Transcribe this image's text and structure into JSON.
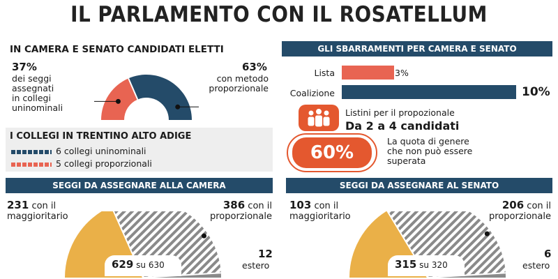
{
  "title": "IL PARLAMENTO CON IL ROSATELLUM",
  "colors": {
    "navy": "#244b69",
    "coral": "#e86452",
    "orange": "#e4582f",
    "gold": "#eab048",
    "hatch": "#8a8a8a"
  },
  "elected_section": {
    "heading": "IN CAMERA E SENATO CANDIDATI ELETTI",
    "left_pct": "37%",
    "left_desc": [
      "dei seggi",
      "assegnati",
      "in collegi",
      "uninominali"
    ],
    "right_pct": "63%",
    "right_desc": [
      "con metodo",
      "proporzionale"
    ]
  },
  "trentino": {
    "heading": "I COLLEGI IN TRENTINO ALTO ADIGE",
    "items": [
      {
        "label": "6 collegi uninominali"
      },
      {
        "label": "5 collegi proporzionali"
      }
    ]
  },
  "thresholds": {
    "heading": "GLI SBARRAMENTI PER CAMERA E SENATO",
    "lista_label": "Lista",
    "lista_value": "3%",
    "coalizione_label": "Coalizione",
    "coalizione_value": "10%"
  },
  "listini": {
    "line1": "Listini per il propozionale",
    "line2": "Da 2 a 4 candidati"
  },
  "quota": {
    "pct": "60%",
    "desc": [
      "La quota di genere",
      "che non può essere",
      "superata"
    ]
  },
  "camera": {
    "heading": "SEGGI DA ASSEGNARE ALLA CAMERA",
    "left_num": "231",
    "left_desc": [
      "con il",
      "maggioritario"
    ],
    "right_num": "386",
    "right_desc": [
      "con il",
      "proporzionale"
    ],
    "estero_num": "12",
    "estero_label": "estero",
    "total_num": "629",
    "total_suffix": "su 630"
  },
  "senato": {
    "heading": "SEGGI DA ASSEGNARE AL SENATO",
    "left_num": "103",
    "left_desc": [
      "con il",
      "maggioritario"
    ],
    "right_num": "206",
    "right_desc": [
      "con il",
      "proporzionale"
    ],
    "estero_num": "6",
    "estero_label": "estero",
    "total_num": "315",
    "total_suffix": "su 320"
  },
  "chart_data": [
    {
      "type": "pie",
      "name_ref": "elected_section",
      "shape": "semi-donut",
      "slices": [
        {
          "label": "collegi uninominali",
          "value": 37,
          "color": "#e86452"
        },
        {
          "label": "metodo proporzionale",
          "value": 63,
          "color": "#244b69"
        }
      ]
    },
    {
      "type": "bar",
      "name_ref": "thresholds",
      "orientation": "horizontal",
      "categories": [
        "Lista",
        "Coalizione"
      ],
      "values": [
        3,
        10
      ],
      "unit": "%",
      "colors": [
        "#e86452",
        "#244b69"
      ]
    },
    {
      "type": "pie",
      "name_ref": "camera",
      "shape": "semi-circle",
      "slices": [
        {
          "label": "con il maggioritario",
          "value": 231,
          "color": "#eab048"
        },
        {
          "label": "con il proporzionale",
          "value": 386,
          "color": "#8a8a8a"
        },
        {
          "label": "estero",
          "value": 12,
          "color": "#8a8a8a"
        }
      ]
    },
    {
      "type": "pie",
      "name_ref": "senato",
      "shape": "semi-circle",
      "slices": [
        {
          "label": "con il maggioritario",
          "value": 103,
          "color": "#eab048"
        },
        {
          "label": "con il proporzionale",
          "value": 206,
          "color": "#8a8a8a"
        },
        {
          "label": "estero",
          "value": 6,
          "color": "#8a8a8a"
        }
      ]
    }
  ]
}
